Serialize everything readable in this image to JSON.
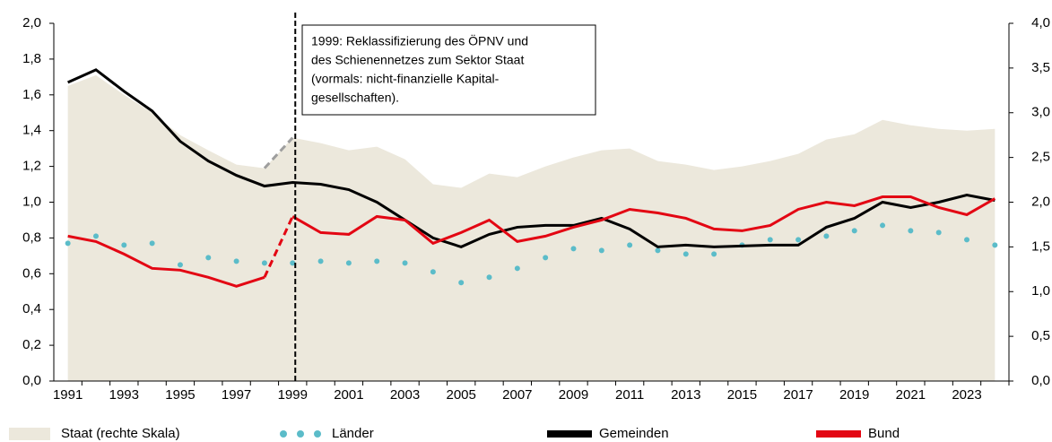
{
  "chart_data": {
    "type": "line",
    "categories": [
      "1991",
      null,
      "1993",
      null,
      "1995",
      null,
      "1997",
      null,
      "1999",
      null,
      "2001",
      null,
      "2003",
      null,
      "2005",
      null,
      "2007",
      null,
      "2009",
      null,
      "2011",
      null,
      "2013",
      null,
      "2015",
      null,
      "2017",
      null,
      "2019",
      null,
      "2021",
      null,
      "2023",
      null
    ],
    "marker_line": "1999",
    "annotation": [
      "1999: Reklassifizierung des ÖPNV und",
      "des Schienennetzes zum Sektor Staat",
      "(vormals: nicht-finanzielle Kapital-",
      "gesellschaften)."
    ],
    "series": [
      {
        "name": "Staat (rechte Skala)",
        "color": "#ece8dc",
        "style": "area",
        "axis": "y2",
        "break_color": "#9e9e9e",
        "values": [
          3.3,
          3.42,
          3.2,
          3.0,
          2.75,
          2.58,
          2.42,
          2.38,
          2.72,
          2.66,
          2.58,
          2.62,
          2.48,
          2.2,
          2.16,
          2.32,
          2.28,
          2.4,
          2.5,
          2.58,
          2.6,
          2.46,
          2.42,
          2.36,
          2.4,
          2.46,
          2.54,
          2.7,
          2.76,
          2.92,
          2.86,
          2.82,
          2.8,
          2.82
        ]
      },
      {
        "name": "Länder",
        "color": "#5bbcc9",
        "style": "dots",
        "values": [
          0.77,
          0.81,
          0.76,
          0.77,
          0.65,
          0.69,
          0.67,
          0.66,
          0.66,
          0.67,
          0.66,
          0.67,
          0.66,
          0.61,
          0.55,
          0.58,
          0.63,
          0.69,
          0.74,
          0.73,
          0.76,
          0.73,
          0.71,
          0.71,
          0.76,
          0.79,
          0.79,
          0.81,
          0.84,
          0.87,
          0.84,
          0.83,
          0.79,
          0.76
        ]
      },
      {
        "name": "Gemeinden",
        "color": "#000000",
        "style": "line",
        "values": [
          1.67,
          1.74,
          1.62,
          1.51,
          1.34,
          1.23,
          1.15,
          1.09,
          1.11,
          1.1,
          1.07,
          1.0,
          0.9,
          0.8,
          0.75,
          0.82,
          0.86,
          0.87,
          0.87,
          0.91,
          0.85,
          0.75,
          0.76,
          0.75,
          0.755,
          0.76,
          0.76,
          0.86,
          0.91,
          1.0,
          0.97,
          1.0,
          1.04,
          1.01
        ]
      },
      {
        "name": "Bund",
        "color": "#e30613",
        "style": "line",
        "break_dashed": true,
        "values": [
          0.81,
          0.78,
          0.71,
          0.63,
          0.62,
          0.58,
          0.53,
          0.58,
          0.92,
          0.83,
          0.82,
          0.92,
          0.9,
          0.77,
          0.83,
          0.9,
          0.78,
          0.81,
          0.86,
          0.9,
          0.96,
          0.94,
          0.91,
          0.85,
          0.84,
          0.87,
          0.96,
          1.0,
          0.98,
          1.03,
          1.03,
          0.97,
          0.93,
          1.02
        ]
      }
    ],
    "ylim": [
      0,
      2
    ],
    "yticks": [
      {
        "value": 0,
        "label": "0,0"
      },
      {
        "value": 0.2,
        "label": "0,2"
      },
      {
        "value": 0.4,
        "label": "0,4"
      },
      {
        "value": 0.6,
        "label": "0,6"
      },
      {
        "value": 0.8,
        "label": "0,8"
      },
      {
        "value": 1,
        "label": "1,0"
      },
      {
        "value": 1.2,
        "label": "1,2"
      },
      {
        "value": 1.4,
        "label": "1,4"
      },
      {
        "value": 1.6,
        "label": "1,6"
      },
      {
        "value": 1.8,
        "label": "1,8"
      },
      {
        "value": 2,
        "label": "2,0"
      }
    ],
    "y2lim": [
      0,
      4
    ],
    "y2ticks": [
      {
        "value": 0,
        "label": "0,0"
      },
      {
        "value": 0.5,
        "label": "0,5"
      },
      {
        "value": 1,
        "label": "1,0"
      },
      {
        "value": 1.5,
        "label": "1,5"
      },
      {
        "value": 2,
        "label": "2,0"
      },
      {
        "value": 2.5,
        "label": "2,5"
      },
      {
        "value": 3,
        "label": "3,0"
      },
      {
        "value": 3.5,
        "label": "3,5"
      },
      {
        "value": 4,
        "label": "4,0"
      }
    ]
  }
}
